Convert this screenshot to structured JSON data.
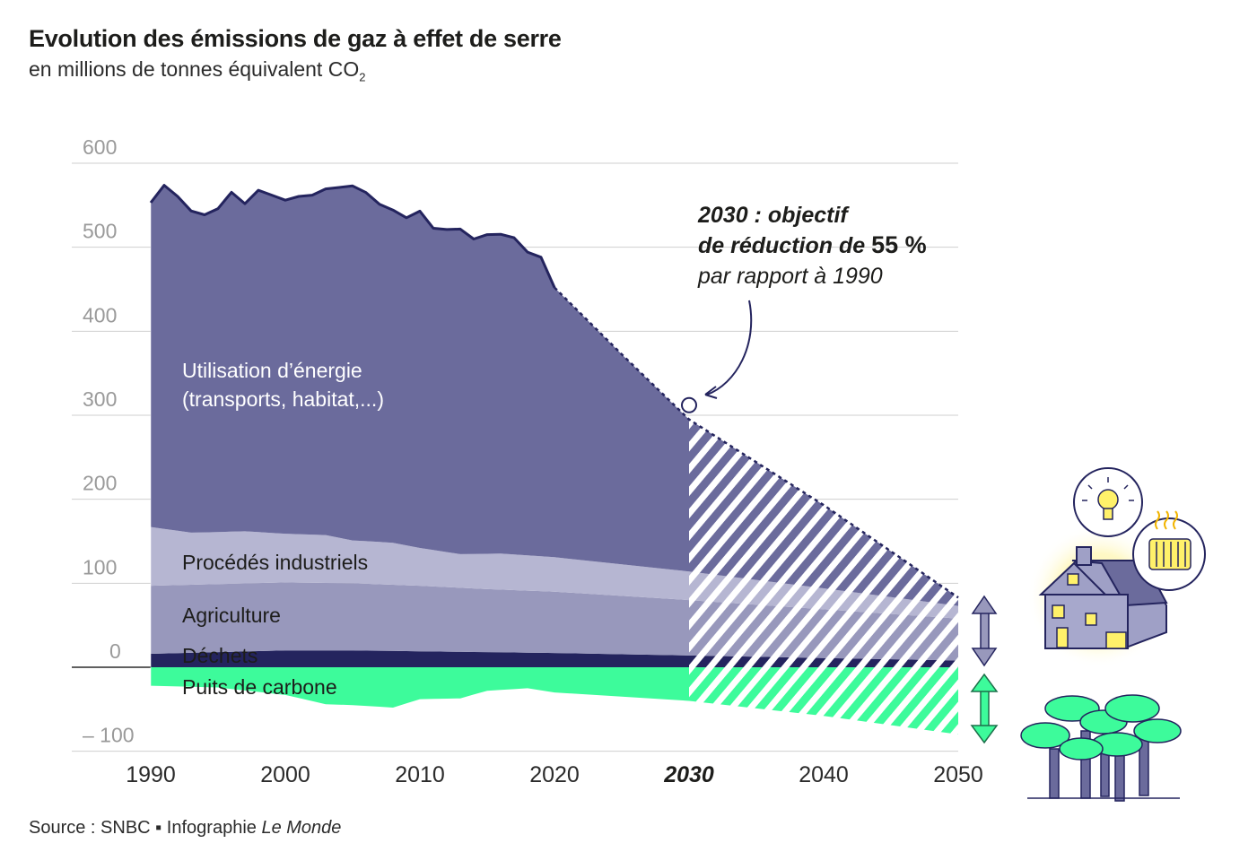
{
  "title": "Evolution des émissions de gaz à effet de serre",
  "subtitle": "en millions de tonnes équivalent CO",
  "subtitle_sub": "2",
  "source_prefix": "Source : SNBC ▪ Infographie ",
  "source_italic": "Le Monde",
  "annotation": {
    "line1": "2030 : objectif",
    "line2_prefix": "de réduction de ",
    "line2_value": "55 %",
    "line3": "par rapport à 1990"
  },
  "colors": {
    "energy": "#6b6b9c",
    "industry": "#b6b6d2",
    "agriculture": "#9898bc",
    "waste": "#24245e",
    "sink": "#3dfb9b",
    "outline": "#24245e",
    "grid": "#cfcfcf"
  },
  "icons": [
    "double-arrow-purple-icon",
    "double-arrow-green-icon",
    "house-icon",
    "lightbulb-icon",
    "radiator-icon",
    "trees-icon"
  ],
  "chart_data": {
    "type": "area",
    "stacked": true,
    "title": "Evolution des émissions de gaz à effet de serre",
    "ylabel": "en millions de tonnes équivalent CO2",
    "xlim": [
      1990,
      2050
    ],
    "ylim": [
      -100,
      600
    ],
    "yticks": [
      600,
      500,
      400,
      300,
      200,
      100,
      0,
      -100
    ],
    "ytick_labels": [
      "600",
      "500",
      "400",
      "300",
      "200",
      "100",
      "0",
      "– 100"
    ],
    "xticks": [
      1990,
      2000,
      2010,
      2020,
      2030,
      2040,
      2050
    ],
    "xtick_labels": [
      "1990",
      "2000",
      "2010",
      "2020",
      "2030",
      "2040",
      "2050"
    ],
    "highlight_x": 2030,
    "projection_start": 2030,
    "grid": true,
    "series": [
      {
        "name": "Déchets",
        "x": [
          1990,
          2000,
          2005,
          2010,
          2020,
          2030,
          2040,
          2050
        ],
        "values": [
          16,
          20,
          20,
          19,
          17,
          14,
          11,
          8
        ]
      },
      {
        "name": "Agriculture",
        "x": [
          1990,
          1995,
          2000,
          2005,
          2010,
          2015,
          2020,
          2030,
          2040,
          2050
        ],
        "values": [
          81,
          81,
          81,
          80,
          78,
          75,
          73,
          66,
          58,
          50
        ]
      },
      {
        "name": "Procédés industriels",
        "x": [
          1990,
          1993,
          1997,
          2000,
          2003,
          2005,
          2008,
          2010,
          2013,
          2016,
          2020,
          2030,
          2040,
          2050
        ],
        "values": [
          70,
          62,
          62,
          58,
          57,
          51,
          50,
          45,
          40,
          43,
          41,
          34,
          25,
          15
        ]
      },
      {
        "name": "Utilisation d'énergie (transports, habitat,...)",
        "x": [
          1990,
          1991,
          1992,
          1993,
          1994,
          1995,
          1996,
          1997,
          1998,
          1999,
          2000,
          2001,
          2002,
          2003,
          2004,
          2005,
          2006,
          2007,
          2008,
          2009,
          2010,
          2011,
          2012,
          2013,
          2014,
          2015,
          2016,
          2017,
          2018,
          2019,
          2020,
          2025,
          2030,
          2040,
          2050
        ],
        "values": [
          386,
          409,
          398,
          383,
          378,
          385,
          404,
          390,
          407,
          402,
          397,
          402,
          404,
          412,
          417,
          422,
          415,
          402,
          396,
          390,
          401,
          383,
          384,
          387,
          375,
          380,
          380,
          377,
          361,
          356,
          321,
          250,
          181,
          99,
          10
        ]
      },
      {
        "name": "Puits de carbone",
        "x": [
          1990,
          1995,
          2000,
          2003,
          2005,
          2008,
          2010,
          2013,
          2015,
          2018,
          2020,
          2030,
          2040,
          2050
        ],
        "values": [
          -22,
          -24,
          -33,
          -44,
          -45,
          -48,
          -38,
          -37,
          -28,
          -25,
          -30,
          -40,
          -58,
          -80
        ]
      }
    ],
    "labels": [
      "Utilisation d’énergie",
      "(transports, habitat,...)",
      "Procédés industriels",
      "Agriculture",
      "Déchets",
      "Puits de carbone"
    ],
    "target_point": {
      "x": 2030,
      "total": 312
    }
  }
}
